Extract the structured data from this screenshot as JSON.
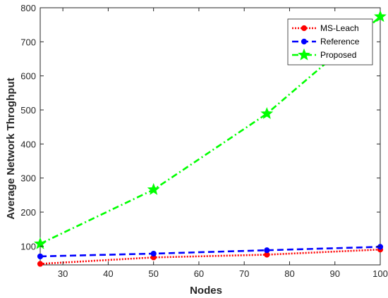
{
  "chart_data": {
    "type": "line",
    "title": "",
    "xlabel": "Nodes",
    "ylabel": "Average Network Throghput",
    "x": [
      25,
      50,
      75,
      100
    ],
    "xlim": [
      25,
      100
    ],
    "ylim": [
      45,
      800
    ],
    "xticks": [
      30,
      40,
      50,
      60,
      70,
      80,
      90,
      100
    ],
    "yticks": [
      100,
      200,
      300,
      400,
      500,
      600,
      700,
      800
    ],
    "grid": false,
    "legend_position": "top-right",
    "series": [
      {
        "name": "MS-Leach",
        "values": [
          48,
          67,
          75,
          90
        ],
        "color": "#ff0000",
        "line_style": "dotted",
        "marker": "circle"
      },
      {
        "name": "Reference",
        "values": [
          70,
          78,
          88,
          98
        ],
        "color": "#0000ff",
        "line_style": "dashed",
        "marker": "circle"
      },
      {
        "name": "Proposed",
        "values": [
          107,
          266,
          489,
          774
        ],
        "color": "#00ff00",
        "line_style": "dash-dot",
        "marker": "star"
      }
    ]
  }
}
